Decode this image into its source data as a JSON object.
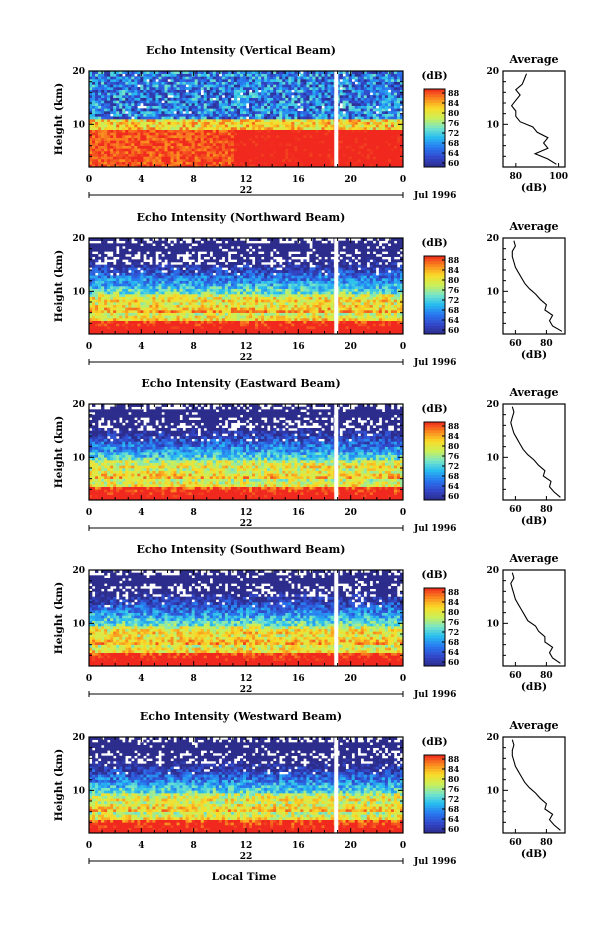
{
  "figure": {
    "bottom_xlabel": "Local Time",
    "date_label": "Jul 1996",
    "day_label": "22"
  },
  "chart_data": [
    {
      "type": "heatmap",
      "title": "Echo Intensity (Vertical Beam)",
      "ylabel": "Height (km)",
      "ylim": [
        2,
        20
      ],
      "yticks": [
        10,
        20
      ],
      "xlim": [
        0,
        24
      ],
      "xticks": [
        "0",
        "4",
        "8",
        "12",
        "16",
        "20",
        "0"
      ],
      "x_unit": "hours local time",
      "data_gap_hour": 18.9,
      "colorbar": {
        "label": "(dB)",
        "ticks": [
          "88",
          "84",
          "80",
          "76",
          "72",
          "68",
          "64",
          "60"
        ],
        "range": [
          60,
          88
        ]
      },
      "profile": {
        "title": "Average",
        "xlabel": "(dB)",
        "xticks": [
          "80",
          "100"
        ],
        "xlim": [
          74,
          103
        ],
        "height_km": [
          2.5,
          3.5,
          4.5,
          5.5,
          6.5,
          7.5,
          8.5,
          9.5,
          10.5,
          11.5,
          12.5,
          13.5,
          14.5,
          15.5,
          16.5,
          17.5,
          18.5,
          19.5
        ],
        "values_db": [
          99,
          95,
          89,
          95,
          93,
          95,
          90,
          88,
          82,
          80,
          80,
          78,
          80,
          82,
          80,
          83,
          84,
          85
        ]
      }
    },
    {
      "type": "heatmap",
      "title": "Echo Intensity (Northward Beam)",
      "ylabel": "Height (km)",
      "ylim": [
        2,
        20
      ],
      "yticks": [
        10,
        20
      ],
      "xlim": [
        0,
        24
      ],
      "xticks": [
        "0",
        "4",
        "8",
        "12",
        "16",
        "20",
        "0"
      ],
      "data_gap_hour": 18.9,
      "colorbar": {
        "label": "(dB)",
        "ticks": [
          "88",
          "84",
          "80",
          "76",
          "72",
          "68",
          "64",
          "60"
        ],
        "range": [
          60,
          88
        ]
      },
      "profile": {
        "title": "Average",
        "xlabel": "(dB)",
        "xticks": [
          "60",
          "80"
        ],
        "xlim": [
          52,
          92
        ],
        "height_km": [
          2.5,
          3.5,
          4.5,
          5.5,
          6.5,
          7.5,
          8.5,
          9.5,
          10.5,
          11.5,
          12.5,
          13.5,
          14.5,
          15.5,
          16.5,
          17.5,
          18.5,
          19.5
        ],
        "values_db": [
          90,
          84,
          82,
          84,
          79,
          80,
          76,
          73,
          69,
          66,
          64,
          62,
          60,
          59,
          58,
          58,
          60,
          59
        ]
      }
    },
    {
      "type": "heatmap",
      "title": "Echo Intensity (Eastward Beam)",
      "ylabel": "Height (km)",
      "ylim": [
        2,
        20
      ],
      "yticks": [
        10,
        20
      ],
      "xlim": [
        0,
        24
      ],
      "xticks": [
        "0",
        "4",
        "8",
        "12",
        "16",
        "20",
        "0"
      ],
      "data_gap_hour": 18.9,
      "colorbar": {
        "label": "(dB)",
        "ticks": [
          "88",
          "84",
          "80",
          "76",
          "72",
          "68",
          "64",
          "60"
        ],
        "range": [
          60,
          88
        ]
      },
      "profile": {
        "title": "Average",
        "xlabel": "(dB)",
        "xticks": [
          "60",
          "80"
        ],
        "xlim": [
          52,
          92
        ],
        "height_km": [
          2.5,
          3.5,
          4.5,
          5.5,
          6.5,
          7.5,
          8.5,
          9.5,
          10.5,
          11.5,
          12.5,
          13.5,
          14.5,
          15.5,
          16.5,
          17.5,
          18.5,
          19.5
        ],
        "values_db": [
          89,
          85,
          82,
          83,
          78,
          79,
          75,
          72,
          68,
          65,
          63,
          61,
          59,
          58,
          57,
          58,
          59,
          58
        ]
      }
    },
    {
      "type": "heatmap",
      "title": "Echo Intensity (Southward Beam)",
      "ylabel": "Height (km)",
      "ylim": [
        2,
        20
      ],
      "yticks": [
        10,
        20
      ],
      "xlim": [
        0,
        24
      ],
      "xticks": [
        "0",
        "4",
        "8",
        "12",
        "16",
        "20",
        "0"
      ],
      "data_gap_hour": 18.9,
      "colorbar": {
        "label": "(dB)",
        "ticks": [
          "88",
          "84",
          "80",
          "76",
          "72",
          "68",
          "64",
          "60"
        ],
        "range": [
          60,
          88
        ]
      },
      "profile": {
        "title": "Average",
        "xlabel": "(dB)",
        "xticks": [
          "60",
          "80"
        ],
        "xlim": [
          52,
          92
        ],
        "height_km": [
          2.5,
          3.5,
          4.5,
          5.5,
          6.5,
          7.5,
          8.5,
          9.5,
          10.5,
          11.5,
          12.5,
          13.5,
          14.5,
          15.5,
          16.5,
          17.5,
          18.5,
          19.5
        ],
        "values_db": [
          89,
          84,
          82,
          84,
          79,
          79,
          75,
          73,
          68,
          66,
          64,
          62,
          60,
          59,
          58,
          57,
          59,
          58
        ]
      }
    },
    {
      "type": "heatmap",
      "title": "Echo Intensity (Westward Beam)",
      "ylabel": "Height (km)",
      "ylim": [
        2,
        20
      ],
      "yticks": [
        10,
        20
      ],
      "xlim": [
        0,
        24
      ],
      "xticks": [
        "0",
        "4",
        "8",
        "12",
        "16",
        "20",
        "0"
      ],
      "data_gap_hour": 18.9,
      "colorbar": {
        "label": "(dB)",
        "ticks": [
          "88",
          "84",
          "80",
          "76",
          "72",
          "68",
          "64",
          "60"
        ],
        "range": [
          60,
          88
        ]
      },
      "profile": {
        "title": "Average",
        "xlabel": "(dB)",
        "xticks": [
          "60",
          "80"
        ],
        "xlim": [
          52,
          92
        ],
        "height_km": [
          2.5,
          3.5,
          4.5,
          5.5,
          6.5,
          7.5,
          8.5,
          9.5,
          10.5,
          11.5,
          12.5,
          13.5,
          14.5,
          15.5,
          16.5,
          17.5,
          18.5,
          19.5
        ],
        "values_db": [
          89,
          85,
          82,
          84,
          79,
          80,
          76,
          73,
          69,
          66,
          64,
          62,
          60,
          59,
          58,
          58,
          59,
          58
        ]
      }
    }
  ]
}
